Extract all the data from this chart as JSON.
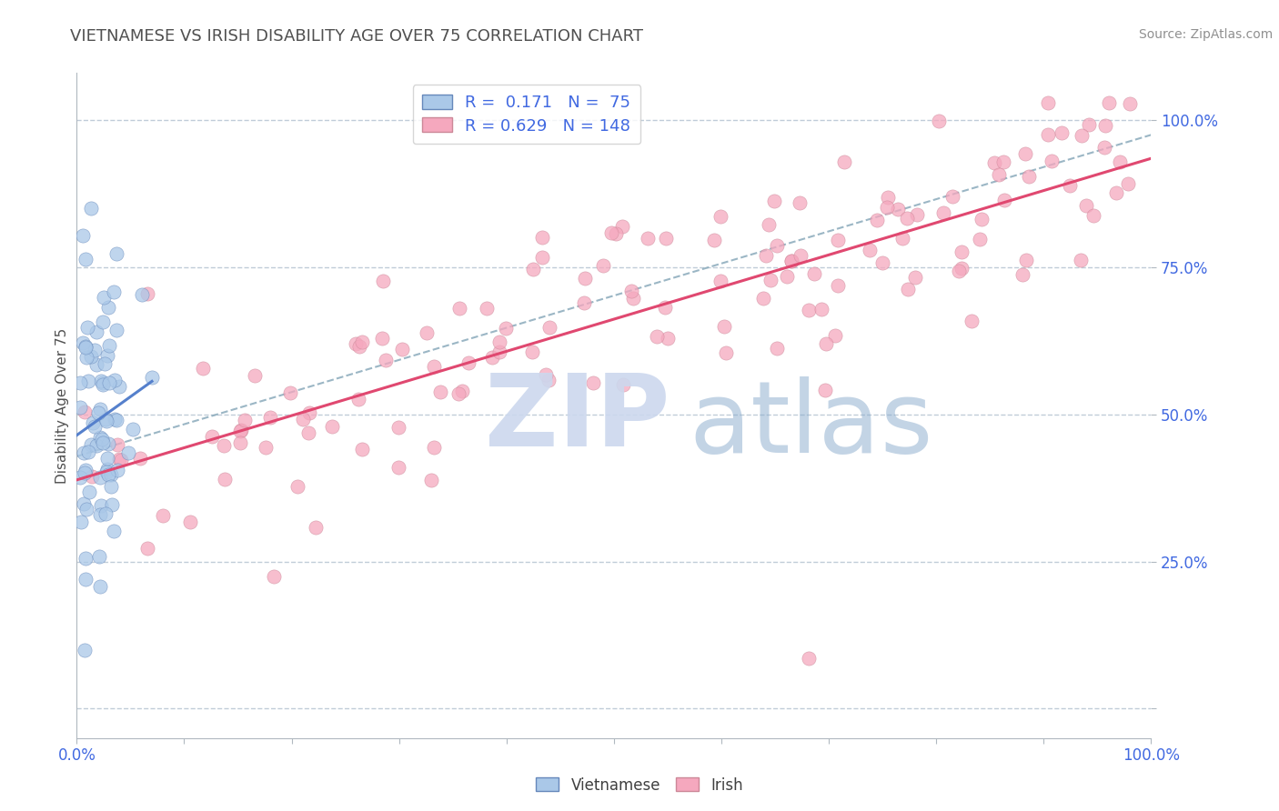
{
  "title": "VIETNAMESE VS IRISH DISABILITY AGE OVER 75 CORRELATION CHART",
  "source": "Source: ZipAtlas.com",
  "ylabel": "Disability Age Over 75",
  "xlabel": "",
  "xlim": [
    0.0,
    1.0
  ],
  "ylim": [
    -0.05,
    1.08
  ],
  "ytick_values": [
    0.0,
    0.25,
    0.5,
    0.75,
    1.0
  ],
  "ytick_labels": [
    "",
    "25.0%",
    "50.0%",
    "75.0%",
    "100.0%"
  ],
  "xtick_values": [
    0.0,
    0.1,
    0.2,
    0.3,
    0.4,
    0.5,
    0.6,
    0.7,
    0.8,
    0.9,
    1.0
  ],
  "xtick_labels": [
    "0.0%",
    "",
    "",
    "",
    "",
    "",
    "",
    "",
    "",
    "",
    "100.0%"
  ],
  "legend_r_vietnamese": "0.171",
  "legend_n_vietnamese": "75",
  "legend_r_irish": "0.629",
  "legend_n_irish": "148",
  "color_vietnamese": "#aac8e8",
  "color_irish": "#f5a8be",
  "color_trend_vietnamese": "#5580cc",
  "color_trend_irish": "#e04870",
  "color_dashed": "#8aaabb",
  "color_title": "#505050",
  "color_axis_labels": "#4169E1",
  "color_source": "#909090",
  "watermark_zip_color": "#ccd8ee",
  "watermark_atlas_color": "#88aacc",
  "grid_color": "#c0ccd8",
  "background_color": "#ffffff",
  "title_fontsize": 13,
  "tick_fontsize": 12,
  "legend_fontsize": 13,
  "scatter_size": 120,
  "scatter_alpha": 0.75,
  "trend_linewidth": 2.2,
  "viet_trend_x_end": 0.07,
  "irish_trend_x_start": 0.0,
  "irish_trend_x_end": 1.0
}
